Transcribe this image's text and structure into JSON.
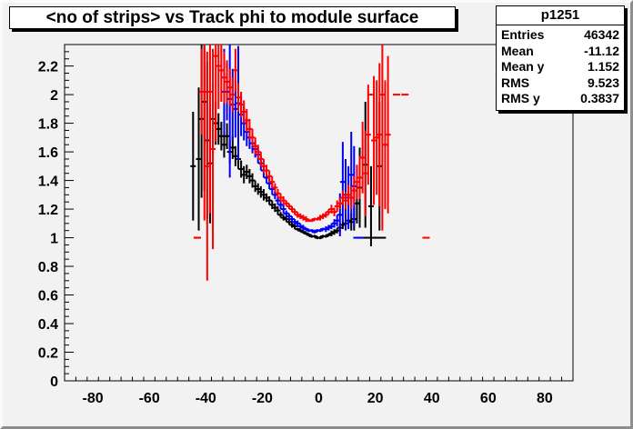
{
  "title": "<no of strips> vs Track phi to module surface",
  "stats": {
    "name": "p1251",
    "rows": [
      {
        "label": "Entries",
        "value": "46342"
      },
      {
        "label": "Mean",
        "value": "-11.12"
      },
      {
        "label": "Mean y",
        "value": "1.152"
      },
      {
        "label": "RMS",
        "value": "9.523"
      },
      {
        "label": "RMS y",
        "value": "0.3837"
      }
    ]
  },
  "colors": {
    "canvas_bg": "#f2f2f2",
    "frame_line": "#000000",
    "series_black": "#000000",
    "series_red": "#fd0000",
    "series_blue": "#0000f4"
  },
  "chart_data": {
    "type": "scatter",
    "subtype": "profile-histogram-with-error-bars",
    "title": "<no of strips> vs Track phi to module surface",
    "xlabel": "",
    "ylabel": "",
    "xlim": [
      -90,
      90
    ],
    "ylim": [
      0,
      2.35
    ],
    "x_major_ticks": [
      -80,
      -60,
      -40,
      -20,
      0,
      20,
      40,
      60,
      80
    ],
    "x_minor_step": 4,
    "y_major_step": 0.2,
    "y_minor_step": 0.05,
    "y_label_max": 2.2,
    "grid": false,
    "legend": "none",
    "series": [
      {
        "name": "black",
        "color": "#000000",
        "points": [
          [
            -44.5,
            1.5,
            0.38
          ],
          [
            -43.0,
            1.0,
            0
          ],
          [
            -42.5,
            1.55,
            0.5
          ],
          [
            -41.5,
            1.83,
            0.55
          ],
          [
            -40.5,
            1.95,
            0.62
          ],
          [
            -39.5,
            1.68,
            0.55
          ],
          [
            -38.5,
            1.52,
            0.42
          ],
          [
            -37.5,
            1.83,
            0.25
          ],
          [
            -36.5,
            1.8,
            0.15
          ],
          [
            -35.5,
            1.76,
            0.11
          ],
          [
            -34.5,
            1.71,
            0.1
          ],
          [
            -33.5,
            1.65,
            0.09
          ],
          [
            -32.5,
            1.71,
            0.09
          ],
          [
            -31.5,
            1.6,
            0.08
          ],
          [
            -30.5,
            1.63,
            0.08
          ],
          [
            -29.5,
            1.57,
            0.07
          ],
          [
            -28.5,
            1.55,
            0.07
          ],
          [
            -27.5,
            1.48,
            0.06
          ],
          [
            -26.5,
            1.44,
            0.06
          ],
          [
            -25.5,
            1.46,
            0.05
          ],
          [
            -24.5,
            1.43,
            0.05
          ],
          [
            -23.5,
            1.4,
            0.05
          ],
          [
            -22.5,
            1.36,
            0.04
          ],
          [
            -21.5,
            1.34,
            0.04
          ],
          [
            -20.5,
            1.32,
            0.04
          ],
          [
            -19.5,
            1.3,
            0.04
          ],
          [
            -18.5,
            1.28,
            0.03
          ],
          [
            -17.5,
            1.26,
            0.03
          ],
          [
            -16.5,
            1.23,
            0.03
          ],
          [
            -15.5,
            1.21,
            0.03
          ],
          [
            -14.5,
            1.19,
            0.03
          ],
          [
            -13.5,
            1.16,
            0.02
          ],
          [
            -12.5,
            1.14,
            0.02
          ],
          [
            -11.5,
            1.13,
            0.02
          ],
          [
            -10.5,
            1.11,
            0.02
          ],
          [
            -9.5,
            1.09,
            0.02
          ],
          [
            -8.5,
            1.08,
            0.02
          ],
          [
            -7.5,
            1.06,
            0.01
          ],
          [
            -6.5,
            1.05,
            0.01
          ],
          [
            -5.5,
            1.04,
            0.01
          ],
          [
            -4.5,
            1.03,
            0.01
          ],
          [
            -3.5,
            1.02,
            0.01
          ],
          [
            -2.5,
            1.01,
            0.01
          ],
          [
            -1.5,
            1.01,
            0.01
          ],
          [
            -0.5,
            1.0,
            0.01
          ],
          [
            0.5,
            1.0,
            0.01
          ],
          [
            1.5,
            1.01,
            0.01
          ],
          [
            2.5,
            1.01,
            0.01
          ],
          [
            3.5,
            1.02,
            0.01
          ],
          [
            4.5,
            1.03,
            0.02
          ],
          [
            5.5,
            1.04,
            0.02
          ],
          [
            6.5,
            1.05,
            0.02
          ],
          [
            7.5,
            1.07,
            0.03
          ],
          [
            8.5,
            1.09,
            0.03
          ],
          [
            9.5,
            1.1,
            0.04
          ],
          [
            10.5,
            1.12,
            0.05
          ],
          [
            11.5,
            1.11,
            0.06
          ],
          [
            12.5,
            1.13,
            0.08
          ],
          [
            13.5,
            1.24,
            0.14
          ],
          [
            14.5,
            1.35,
            0.28
          ],
          [
            15.5,
            1.0,
            0
          ],
          [
            16.5,
            1.51,
            0.44
          ],
          [
            17.5,
            1.0,
            0
          ],
          [
            18.5,
            1.22,
            0.28
          ],
          [
            19.5,
            1.0,
            0
          ],
          [
            20.5,
            1.0,
            0
          ],
          [
            21.5,
            1.5,
            0.45
          ],
          [
            22.5,
            1.0,
            0
          ]
        ]
      },
      {
        "name": "blue",
        "color": "#0000f4",
        "points": [
          [
            -33.5,
            2.02,
            0.3
          ],
          [
            -32.5,
            2.02,
            0.2
          ],
          [
            -31.5,
            1.97,
            0.55
          ],
          [
            -30.5,
            1.93,
            0.25
          ],
          [
            -29.5,
            1.9,
            0.2
          ],
          [
            -28.5,
            1.94,
            0.4
          ],
          [
            -27.5,
            1.86,
            0.15
          ],
          [
            -26.5,
            1.8,
            0.12
          ],
          [
            -25.5,
            1.74,
            0.1
          ],
          [
            -24.5,
            1.7,
            0.08
          ],
          [
            -23.5,
            1.66,
            0.07
          ],
          [
            -22.5,
            1.62,
            0.06
          ],
          [
            -21.5,
            1.58,
            0.06
          ],
          [
            -20.5,
            1.52,
            0.05
          ],
          [
            -19.5,
            1.47,
            0.05
          ],
          [
            -18.5,
            1.42,
            0.04
          ],
          [
            -17.5,
            1.38,
            0.04
          ],
          [
            -16.5,
            1.34,
            0.04
          ],
          [
            -15.5,
            1.3,
            0.03
          ],
          [
            -14.5,
            1.26,
            0.03
          ],
          [
            -13.5,
            1.23,
            0.03
          ],
          [
            -12.5,
            1.2,
            0.03
          ],
          [
            -11.5,
            1.17,
            0.02
          ],
          [
            -10.5,
            1.15,
            0.02
          ],
          [
            -9.5,
            1.13,
            0.02
          ],
          [
            -8.5,
            1.11,
            0.02
          ],
          [
            -7.5,
            1.1,
            0.02
          ],
          [
            -6.5,
            1.08,
            0.02
          ],
          [
            -5.5,
            1.07,
            0.02
          ],
          [
            -4.5,
            1.06,
            0.01
          ],
          [
            -3.5,
            1.05,
            0.01
          ],
          [
            -2.5,
            1.05,
            0.01
          ],
          [
            -1.5,
            1.04,
            0.01
          ],
          [
            -0.5,
            1.05,
            0.01
          ],
          [
            0.5,
            1.05,
            0.01
          ],
          [
            1.5,
            1.06,
            0.01
          ],
          [
            2.5,
            1.06,
            0.02
          ],
          [
            3.5,
            1.07,
            0.02
          ],
          [
            4.5,
            1.08,
            0.02
          ],
          [
            5.5,
            1.1,
            0.03
          ],
          [
            6.5,
            1.12,
            0.04
          ],
          [
            7.5,
            1.16,
            0.15
          ],
          [
            8.5,
            1.39,
            0.28
          ],
          [
            9.5,
            1.3,
            0.25
          ],
          [
            10.5,
            1.28,
            0.22
          ],
          [
            11.5,
            1.44,
            0.3
          ],
          [
            12.5,
            1.36,
            0.28
          ],
          [
            13.5,
            1.0,
            0
          ],
          [
            14.5,
            1.0,
            0
          ]
        ]
      },
      {
        "name": "red",
        "color": "#fd0000",
        "points": [
          [
            -43.0,
            1.0,
            0
          ],
          [
            -41.5,
            2.02,
            0.3
          ],
          [
            -40.5,
            2.02,
            0.9
          ],
          [
            -39.5,
            1.5,
            0.8
          ],
          [
            -38.5,
            2.02,
            0.85
          ],
          [
            -37.5,
            1.62,
            0.7
          ],
          [
            -36.5,
            2.27,
            0.6
          ],
          [
            -35.5,
            2.2,
            0.3
          ],
          [
            -34.5,
            2.17,
            0.22
          ],
          [
            -33.5,
            2.12,
            0.18
          ],
          [
            -32.5,
            2.09,
            0.15
          ],
          [
            -31.5,
            2.05,
            0.13
          ],
          [
            -30.5,
            2.0,
            0.12
          ],
          [
            -29.5,
            2.17,
            0.15
          ],
          [
            -28.5,
            1.98,
            0.1
          ],
          [
            -27.5,
            1.93,
            0.09
          ],
          [
            -26.5,
            1.88,
            0.08
          ],
          [
            -25.5,
            1.82,
            0.08
          ],
          [
            -24.5,
            1.76,
            0.07
          ],
          [
            -23.5,
            1.7,
            0.06
          ],
          [
            -22.5,
            1.64,
            0.06
          ],
          [
            -21.5,
            1.6,
            0.05
          ],
          [
            -20.5,
            1.55,
            0.05
          ],
          [
            -19.5,
            1.5,
            0.05
          ],
          [
            -18.5,
            1.47,
            0.04
          ],
          [
            -17.5,
            1.43,
            0.04
          ],
          [
            -16.5,
            1.39,
            0.04
          ],
          [
            -15.5,
            1.35,
            0.03
          ],
          [
            -14.5,
            1.31,
            0.03
          ],
          [
            -13.5,
            1.28,
            0.03
          ],
          [
            -12.5,
            1.26,
            0.03
          ],
          [
            -11.5,
            1.24,
            0.02
          ],
          [
            -10.5,
            1.22,
            0.02
          ],
          [
            -9.5,
            1.2,
            0.02
          ],
          [
            -8.5,
            1.18,
            0.02
          ],
          [
            -7.5,
            1.16,
            0.02
          ],
          [
            -6.5,
            1.15,
            0.02
          ],
          [
            -5.5,
            1.14,
            0.02
          ],
          [
            -4.5,
            1.13,
            0.02
          ],
          [
            -3.5,
            1.12,
            0.01
          ],
          [
            -2.5,
            1.12,
            0.01
          ],
          [
            -1.5,
            1.13,
            0.01
          ],
          [
            -0.5,
            1.13,
            0.01
          ],
          [
            0.5,
            1.14,
            0.02
          ],
          [
            1.5,
            1.15,
            0.02
          ],
          [
            2.5,
            1.16,
            0.02
          ],
          [
            3.5,
            1.18,
            0.02
          ],
          [
            4.5,
            1.2,
            0.03
          ],
          [
            5.5,
            1.18,
            0.03
          ],
          [
            6.5,
            1.22,
            0.04
          ],
          [
            7.5,
            1.24,
            0.04
          ],
          [
            8.5,
            1.28,
            0.05
          ],
          [
            9.5,
            1.26,
            0.06
          ],
          [
            10.5,
            1.3,
            0.07
          ],
          [
            11.5,
            1.28,
            0.08
          ],
          [
            12.5,
            1.33,
            0.1
          ],
          [
            13.5,
            1.39,
            0.12
          ],
          [
            14.5,
            1.42,
            0.15
          ],
          [
            15.5,
            1.56,
            0.25
          ],
          [
            16.5,
            1.45,
            0.3
          ],
          [
            17.5,
            1.72,
            0.35
          ],
          [
            18.5,
            2.0,
            0
          ],
          [
            19.5,
            1.68,
            0.45
          ],
          [
            20.5,
            1.7,
            0.4
          ],
          [
            21.5,
            1.72,
            0.5
          ],
          [
            22.5,
            2.0,
            0.95
          ],
          [
            23.5,
            1.65,
            0.45
          ],
          [
            24.5,
            1.72,
            0.55
          ],
          [
            27.5,
            2.0,
            0
          ],
          [
            30.5,
            2.0,
            0
          ],
          [
            38.0,
            1.0,
            0
          ]
        ]
      }
    ]
  }
}
